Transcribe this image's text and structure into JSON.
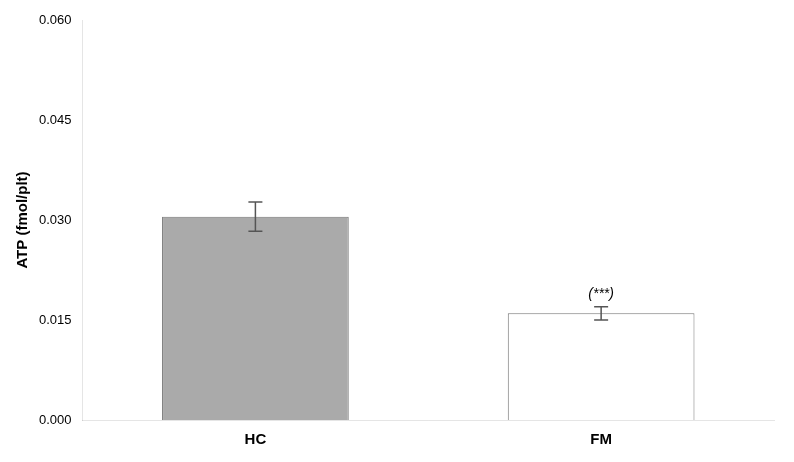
{
  "chart_data": {
    "type": "bar",
    "categories": [
      "HC",
      "FM"
    ],
    "values": [
      0.0305,
      0.016
    ],
    "errors": [
      0.0022,
      0.001
    ],
    "colors": [
      "#aaaaaa",
      "#ffffff"
    ],
    "ylabel": "ATP (fmol/plt)",
    "ylim": [
      0,
      0.06
    ],
    "yticks": [
      {
        "value": 0.0,
        "label": "0.000"
      },
      {
        "value": 0.015,
        "label": "0.015"
      },
      {
        "value": 0.03,
        "label": "0.030"
      },
      {
        "value": 0.045,
        "label": "0.045"
      },
      {
        "value": 0.06,
        "label": "0.060"
      }
    ],
    "annotations": [
      {
        "text": "(***)",
        "x": "FM"
      }
    ],
    "grid": false
  }
}
